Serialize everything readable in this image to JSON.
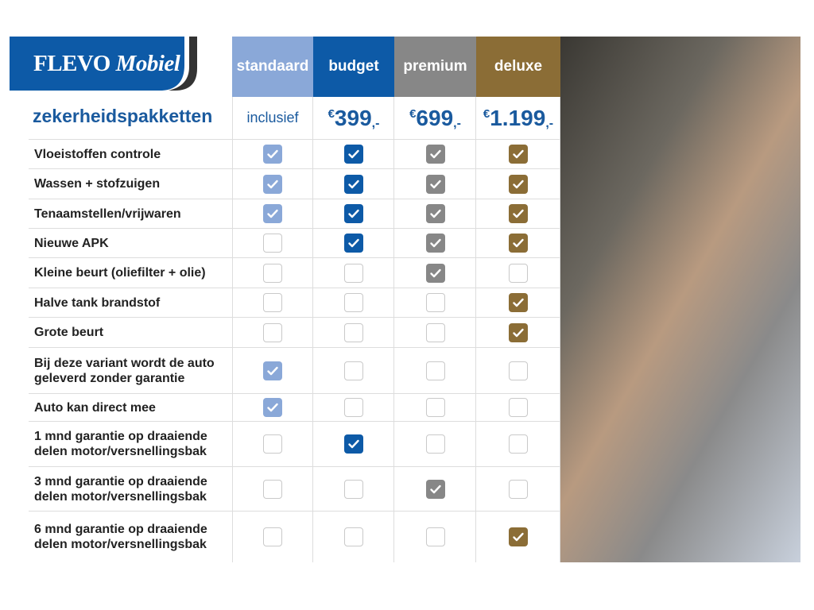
{
  "brand": {
    "name": "FLEVO",
    "name2": "Mobiel"
  },
  "title": "zekerheidspakketten",
  "colors": {
    "standaard": "#8aa8d8",
    "budget": "#0d5aa7",
    "premium": "#878787",
    "deluxe": "#8b6d36",
    "title": "#1a5a9e"
  },
  "packages": [
    {
      "name": "standaard",
      "price": "inclusief",
      "color": "#8aa8d8"
    },
    {
      "name": "budget",
      "currency": "€",
      "price": "399",
      "suffix": ",-",
      "color": "#0d5aa7"
    },
    {
      "name": "premium",
      "currency": "€",
      "price": "699",
      "suffix": ",-",
      "color": "#878787"
    },
    {
      "name": "deluxe",
      "currency": "€",
      "price": "1.199",
      "suffix": ",-",
      "color": "#8b6d36"
    }
  ],
  "features": [
    {
      "label": "Vloeistoffen controle",
      "checks": [
        1,
        1,
        1,
        1
      ]
    },
    {
      "label": "Wassen + stofzuigen",
      "checks": [
        1,
        1,
        1,
        1
      ]
    },
    {
      "label": "Tenaamstellen/vrijwaren",
      "checks": [
        1,
        1,
        1,
        1
      ]
    },
    {
      "label": "Nieuwe APK",
      "checks": [
        0,
        1,
        1,
        1
      ]
    },
    {
      "label": "Kleine beurt (oliefilter + olie)",
      "checks": [
        0,
        0,
        1,
        0
      ]
    },
    {
      "label": "Halve tank brandstof",
      "checks": [
        0,
        0,
        0,
        1
      ]
    },
    {
      "label": "Grote beurt",
      "checks": [
        0,
        0,
        0,
        1
      ]
    },
    {
      "label": "Bij deze variant wordt de auto geleverd zonder garantie",
      "checks": [
        1,
        0,
        0,
        0
      ]
    },
    {
      "label": "Auto kan direct mee",
      "checks": [
        1,
        0,
        0,
        0
      ]
    },
    {
      "label": "1 mnd garantie op draaiende delen motor/versnellingsbak",
      "checks": [
        0,
        1,
        0,
        0
      ]
    },
    {
      "label": "3 mnd garantie op draaiende delen motor/versnellingsbak",
      "checks": [
        0,
        0,
        1,
        0
      ]
    },
    {
      "label": "6 mnd garantie op draaiende delen motor/versnellingsbak",
      "checks": [
        0,
        0,
        0,
        1
      ]
    }
  ]
}
